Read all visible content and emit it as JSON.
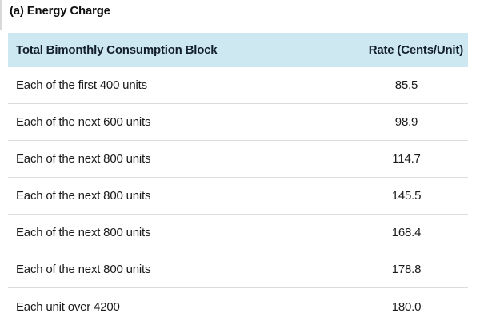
{
  "page": {
    "title": "(a) Energy Charge"
  },
  "table": {
    "columns": [
      {
        "label": "Total Bimonthly Consumption Block"
      },
      {
        "label": "Rate (Cents/Unit)"
      }
    ],
    "rows": [
      {
        "block": "Each of the first 400 units",
        "rate": "85.5"
      },
      {
        "block": "Each of the next 600 units",
        "rate": "98.9"
      },
      {
        "block": "Each of the next 800 units",
        "rate": "114.7"
      },
      {
        "block": "Each of the next 800 units",
        "rate": "145.5"
      },
      {
        "block": "Each of the next 800 units",
        "rate": "168.4"
      },
      {
        "block": "Each of the next 800 units",
        "rate": "178.8"
      },
      {
        "block": "Each unit over 4200",
        "rate": "180.0"
      }
    ],
    "colors": {
      "header_bg": "#cee8f2",
      "header_text": "#13202c",
      "separator": "#dcdcdc",
      "body_text": "#1b1b1b"
    }
  }
}
